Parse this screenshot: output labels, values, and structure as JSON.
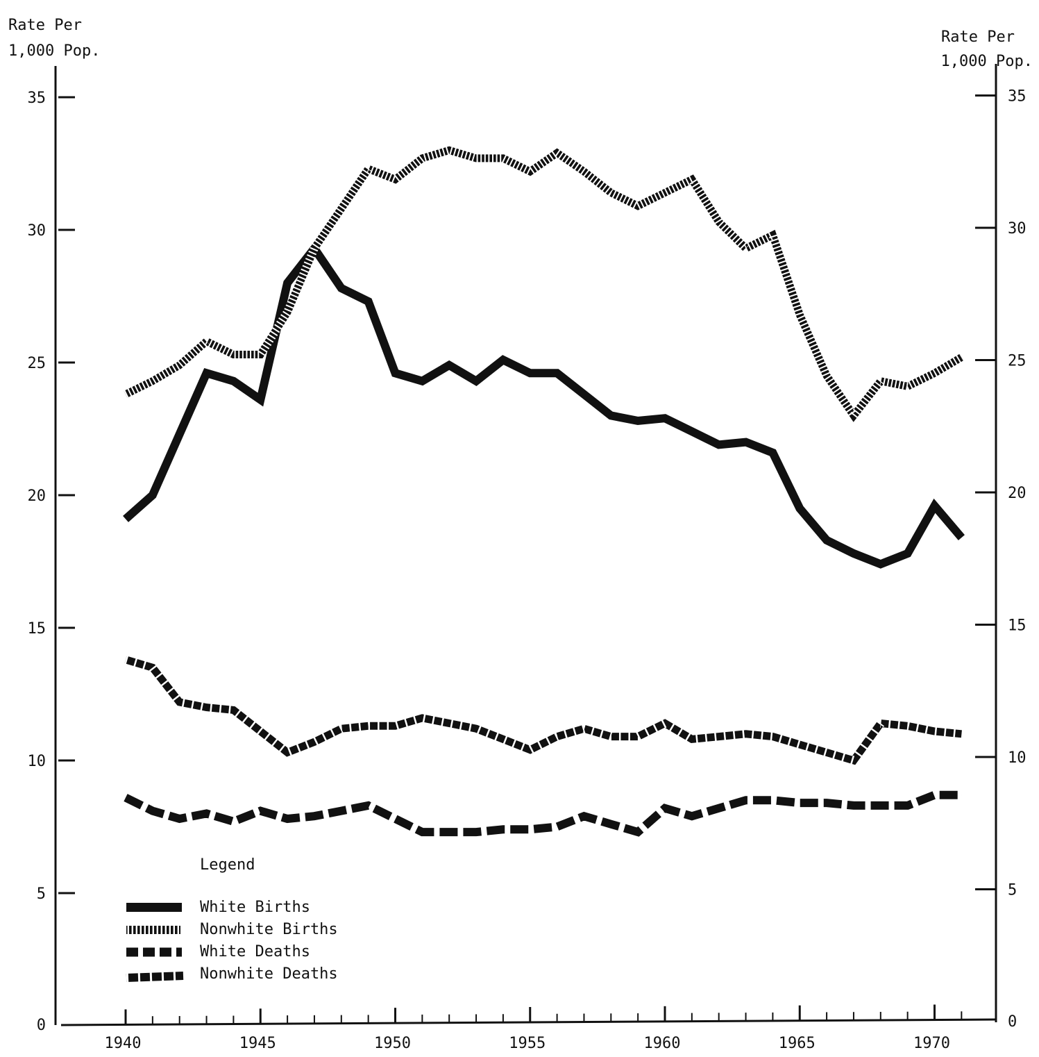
{
  "chart_data": {
    "type": "line",
    "y_axis_title_left": [
      "Rate Per",
      "1,000 Pop."
    ],
    "y_axis_title_right": [
      "Rate Per",
      "1,000 Pop."
    ],
    "xlim": [
      1937.5,
      1972.5
    ],
    "ylim": [
      0,
      35
    ],
    "x_ticks": [
      1940,
      1945,
      1950,
      1955,
      1960,
      1965,
      1970
    ],
    "y_ticks": [
      0,
      5,
      10,
      15,
      20,
      25,
      30,
      35
    ],
    "legend_title": "Legend",
    "legend_position": "bottom-left",
    "grid": false,
    "x": [
      1940,
      1941,
      1942,
      1943,
      1944,
      1945,
      1946,
      1947,
      1948,
      1949,
      1950,
      1951,
      1952,
      1953,
      1954,
      1955,
      1956,
      1957,
      1958,
      1959,
      1960,
      1961,
      1962,
      1963,
      1964,
      1965,
      1966,
      1967,
      1968,
      1969,
      1970,
      1971
    ],
    "series": [
      {
        "name": "White Births",
        "style": "solid",
        "values": [
          19.1,
          20.0,
          22.3,
          24.6,
          24.3,
          23.6,
          28.0,
          29.3,
          27.8,
          27.3,
          24.6,
          24.3,
          24.9,
          24.3,
          25.1,
          24.6,
          24.6,
          23.8,
          23.0,
          22.8,
          22.9,
          22.4,
          21.9,
          22.0,
          21.6,
          19.5,
          18.3,
          17.8,
          17.4,
          17.8,
          19.6,
          18.4
        ]
      },
      {
        "name": "Nonwhite Births",
        "style": "dotted",
        "values": [
          23.8,
          24.3,
          24.9,
          25.8,
          25.3,
          25.3,
          26.9,
          29.3,
          30.8,
          32.3,
          31.9,
          32.7,
          33.0,
          32.7,
          32.7,
          32.2,
          32.9,
          32.2,
          31.4,
          30.9,
          31.4,
          31.9,
          30.3,
          29.3,
          29.8,
          26.8,
          24.5,
          23.0,
          24.3,
          24.1,
          24.6,
          25.2
        ]
      },
      {
        "name": "White Deaths",
        "style": "dashed",
        "values": [
          8.6,
          8.1,
          7.8,
          8.0,
          7.7,
          8.1,
          7.8,
          7.9,
          8.1,
          8.3,
          7.8,
          7.3,
          7.3,
          7.3,
          7.4,
          7.4,
          7.5,
          7.9,
          7.6,
          7.3,
          8.2,
          7.9,
          8.2,
          8.5,
          8.5,
          8.4,
          8.4,
          8.3,
          8.3,
          8.3,
          8.7,
          8.7
        ]
      },
      {
        "name": "Nonwhite Deaths",
        "style": "hatched",
        "values": [
          13.8,
          13.5,
          12.2,
          12.0,
          11.9,
          11.1,
          10.3,
          10.7,
          11.2,
          11.3,
          11.3,
          11.6,
          11.4,
          11.2,
          10.8,
          10.4,
          10.9,
          11.2,
          10.9,
          10.9,
          11.4,
          10.8,
          10.9,
          11.0,
          10.9,
          10.6,
          10.3,
          10.0,
          11.4,
          11.3,
          11.1,
          11.0
        ]
      }
    ]
  }
}
